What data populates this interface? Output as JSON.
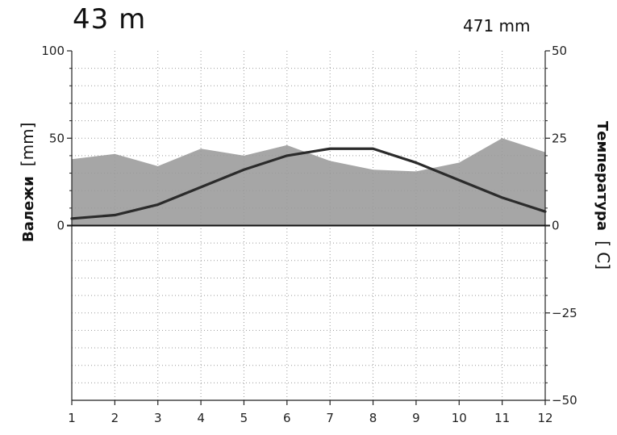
{
  "chart_data": {
    "type": "climate",
    "title": "43 m",
    "annotation": "471 mm",
    "categories": [
      1,
      2,
      3,
      4,
      5,
      6,
      7,
      8,
      9,
      10,
      11,
      12
    ],
    "series": [
      {
        "name": "Валежи",
        "kind": "area",
        "axis": "left",
        "values": [
          38,
          41,
          34,
          44,
          40,
          46,
          37,
          32,
          31,
          36,
          50,
          42
        ]
      },
      {
        "name": "Температура",
        "kind": "line",
        "axis": "right",
        "values": [
          2,
          3,
          6,
          11,
          16,
          20,
          22,
          22,
          18,
          13,
          8,
          4
        ]
      }
    ],
    "ylabel_left": "Валежи",
    "ylabel_left_unit": "[mm]",
    "ylabel_right": "Температура",
    "ylabel_right_unit": "[ C]",
    "ylim_left": [
      -100,
      100
    ],
    "ylim_right": [
      -50,
      50
    ],
    "yticks_left": [
      "100",
      "50",
      "0"
    ],
    "yticks_left_values": [
      100,
      50,
      0
    ],
    "yticks_right": [
      "50",
      "25",
      "0",
      "−25",
      "−50"
    ],
    "yticks_right_values": [
      50,
      25,
      0,
      -25,
      -50
    ],
    "grid": true,
    "colors": {
      "area": "#a6a6a6",
      "line": "#2b2b2b",
      "grid": "#9a9a9a",
      "axis": "#222222"
    }
  }
}
